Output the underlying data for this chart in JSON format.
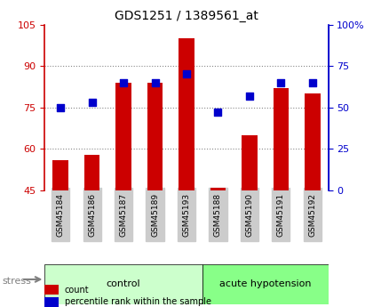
{
  "title": "GDS1251 / 1389561_at",
  "samples": [
    "GSM45184",
    "GSM45186",
    "GSM45187",
    "GSM45189",
    "GSM45193",
    "GSM45188",
    "GSM45190",
    "GSM45191",
    "GSM45192"
  ],
  "counts": [
    56,
    58,
    84,
    84,
    100,
    46,
    65,
    82,
    80
  ],
  "percentiles": [
    50,
    53,
    65,
    65,
    70,
    47,
    57,
    65,
    65
  ],
  "left_ylim": [
    45,
    105
  ],
  "left_yticks": [
    45,
    60,
    75,
    90,
    105
  ],
  "right_ylim": [
    0,
    100
  ],
  "right_yticks": [
    0,
    25,
    50,
    75,
    100
  ],
  "right_yticklabels": [
    "0",
    "25",
    "50",
    "75",
    "100%"
  ],
  "bar_color": "#cc0000",
  "dot_color": "#0000cc",
  "bar_width": 0.5,
  "group1_label": "control",
  "group2_label": "acute hypotension",
  "group1_indices": [
    0,
    1,
    2,
    3,
    4
  ],
  "group2_indices": [
    5,
    6,
    7,
    8
  ],
  "stress_label": "stress",
  "legend_count_label": "count",
  "legend_pct_label": "percentile rank within the sample",
  "grid_color": "#888888",
  "group_label_color": "#000000",
  "group1_bg": "#ccffcc",
  "group2_bg": "#88ff88",
  "tick_bg": "#cccccc",
  "title_color": "#000000",
  "left_axis_color": "#cc0000",
  "right_axis_color": "#0000cc",
  "dot_size": 40
}
